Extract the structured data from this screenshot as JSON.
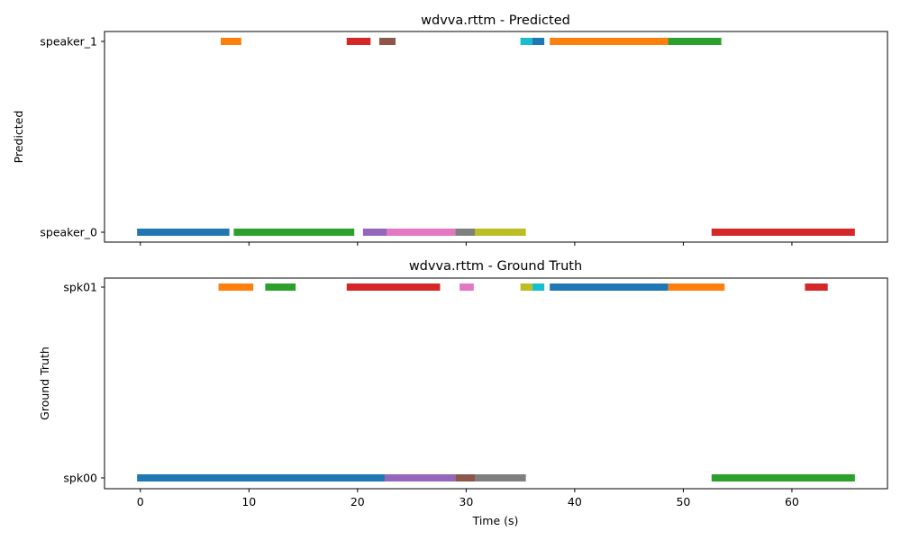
{
  "chart_data": [
    {
      "type": "broken-barh",
      "title": "wdvva.rttm - Predicted",
      "xlabel": "",
      "ylabel": "Predicted",
      "xlim": [
        -3.3,
        68.8
      ],
      "xticks": [
        0,
        10,
        20,
        30,
        40,
        50,
        60
      ],
      "show_xtick_labels": false,
      "grid": false,
      "rows": [
        "speaker_0",
        "speaker_1"
      ],
      "segments": [
        {
          "row": "speaker_1",
          "start": 7.4,
          "end": 9.3,
          "color": "#ff7f0e"
        },
        {
          "row": "speaker_1",
          "start": 19.0,
          "end": 21.2,
          "color": "#d62728"
        },
        {
          "row": "speaker_1",
          "start": 22.0,
          "end": 23.5,
          "color": "#8c564b"
        },
        {
          "row": "speaker_1",
          "start": 35.0,
          "end": 36.1,
          "color": "#17becf"
        },
        {
          "row": "speaker_1",
          "start": 36.1,
          "end": 37.2,
          "color": "#1f77b4"
        },
        {
          "row": "speaker_1",
          "start": 37.7,
          "end": 48.6,
          "color": "#ff7f0e"
        },
        {
          "row": "speaker_1",
          "start": 48.6,
          "end": 53.5,
          "color": "#2ca02c"
        },
        {
          "row": "speaker_0",
          "start": -0.3,
          "end": 8.2,
          "color": "#1f77b4"
        },
        {
          "row": "speaker_0",
          "start": 8.6,
          "end": 19.7,
          "color": "#2ca02c"
        },
        {
          "row": "speaker_0",
          "start": 20.5,
          "end": 22.7,
          "color": "#9467bd"
        },
        {
          "row": "speaker_0",
          "start": 22.7,
          "end": 29.0,
          "color": "#e377c2"
        },
        {
          "row": "speaker_0",
          "start": 29.0,
          "end": 30.8,
          "color": "#7f7f7f"
        },
        {
          "row": "speaker_0",
          "start": 30.8,
          "end": 35.5,
          "color": "#bcbd22"
        },
        {
          "row": "speaker_0",
          "start": 52.6,
          "end": 65.8,
          "color": "#d62728"
        }
      ]
    },
    {
      "type": "broken-barh",
      "title": "wdvva.rttm - Ground Truth",
      "xlabel": "Time (s)",
      "ylabel": "Ground Truth",
      "xlim": [
        -3.3,
        68.8
      ],
      "xticks": [
        0,
        10,
        20,
        30,
        40,
        50,
        60
      ],
      "show_xtick_labels": true,
      "grid": false,
      "rows": [
        "spk00",
        "spk01"
      ],
      "segments": [
        {
          "row": "spk01",
          "start": 7.2,
          "end": 10.4,
          "color": "#ff7f0e"
        },
        {
          "row": "spk01",
          "start": 11.5,
          "end": 14.3,
          "color": "#2ca02c"
        },
        {
          "row": "spk01",
          "start": 19.0,
          "end": 27.6,
          "color": "#d62728"
        },
        {
          "row": "spk01",
          "start": 29.4,
          "end": 30.7,
          "color": "#e377c2"
        },
        {
          "row": "spk01",
          "start": 35.0,
          "end": 36.1,
          "color": "#bcbd22"
        },
        {
          "row": "spk01",
          "start": 36.1,
          "end": 37.2,
          "color": "#17becf"
        },
        {
          "row": "spk01",
          "start": 37.7,
          "end": 48.6,
          "color": "#1f77b4"
        },
        {
          "row": "spk01",
          "start": 48.6,
          "end": 53.8,
          "color": "#ff7f0e"
        },
        {
          "row": "spk01",
          "start": 61.2,
          "end": 63.3,
          "color": "#d62728"
        },
        {
          "row": "spk00",
          "start": -0.3,
          "end": 22.5,
          "color": "#1f77b4"
        },
        {
          "row": "spk00",
          "start": 22.5,
          "end": 29.0,
          "color": "#9467bd"
        },
        {
          "row": "spk00",
          "start": 29.0,
          "end": 30.8,
          "color": "#8c564b"
        },
        {
          "row": "spk00",
          "start": 30.8,
          "end": 35.5,
          "color": "#7f7f7f"
        },
        {
          "row": "spk00",
          "start": 52.6,
          "end": 65.8,
          "color": "#2ca02c"
        }
      ]
    }
  ]
}
